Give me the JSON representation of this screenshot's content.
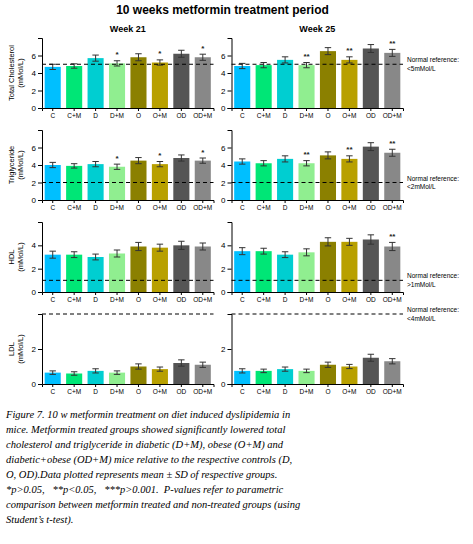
{
  "title": "10 weeks metformin treatment period",
  "caption": "Figure 7. 10 w metformin treatment on diet induced dyslipidemia in\nmice. Metformin treated groups showed significantly lowered total\ncholesterol and triglyceride in diabetic (D+M), obese (O+M) and\ndiabetic+obese (OD+M) mice relative to the respective controls (D,\nO, OD).Data plotted represents mean ± SD of respective groups.\n*p>0.05,   **p<0.05,   ***p>0.001.  P-values refer to parametric\ncomparison between metformin treated and non-treated groups (using\nStudent’s t-test).",
  "chart_data": [
    {
      "type": "bar",
      "title": "Week 21",
      "ylabel": "Total Cholesterol\n(mMol/L)",
      "categories": [
        "C",
        "C+M",
        "D",
        "D+M",
        "O",
        "O+M",
        "OD",
        "OD+M"
      ],
      "values": [
        4.7,
        4.8,
        5.7,
        5.1,
        5.8,
        5.2,
        6.2,
        5.8
      ],
      "errors": [
        0.3,
        0.25,
        0.35,
        0.3,
        0.4,
        0.3,
        0.4,
        0.35
      ],
      "colors": [
        "#00BFFF",
        "#00E676",
        "#00CED1",
        "#90EE90",
        "#8B8000",
        "#B8A000",
        "#555555",
        "#888888"
      ],
      "ylim": [
        0,
        8
      ],
      "yticks": [
        0,
        2,
        4,
        6
      ],
      "ref_line": 5.0,
      "annotations": [
        {
          "category": "D+M",
          "text": "*"
        },
        {
          "category": "O+M",
          "text": "*"
        },
        {
          "category": "OD+M",
          "text": "*"
        }
      ]
    },
    {
      "type": "bar",
      "title": "Week 25",
      "categories": [
        "C",
        "C+M",
        "D",
        "D+M",
        "O",
        "O+M",
        "OD",
        "OD+M"
      ],
      "values": [
        4.8,
        4.9,
        5.5,
        4.9,
        6.5,
        5.5,
        6.8,
        6.3
      ],
      "errors": [
        0.3,
        0.3,
        0.35,
        0.3,
        0.4,
        0.35,
        0.45,
        0.4
      ],
      "colors": [
        "#00BFFF",
        "#00E676",
        "#00CED1",
        "#90EE90",
        "#8B8000",
        "#B8A000",
        "#555555",
        "#888888"
      ],
      "ylim": [
        0,
        8
      ],
      "yticks": [
        0,
        2,
        4,
        6
      ],
      "ref_line": 5.0,
      "ref_text": "Normal reference:\n<5mMol/L",
      "annotations": [
        {
          "category": "D+M",
          "text": "**"
        },
        {
          "category": "O+M",
          "text": "**"
        },
        {
          "category": "OD+M",
          "text": "**"
        }
      ]
    },
    {
      "type": "bar",
      "ylabel": "Triglyceride\n(mMol/L)",
      "categories": [
        "C",
        "C+M",
        "D",
        "D+M",
        "O",
        "O+M",
        "OD",
        "OD+M"
      ],
      "values": [
        4.0,
        3.9,
        4.1,
        3.8,
        4.5,
        4.1,
        4.8,
        4.5
      ],
      "errors": [
        0.3,
        0.25,
        0.3,
        0.3,
        0.35,
        0.3,
        0.35,
        0.3
      ],
      "colors": [
        "#00BFFF",
        "#00E676",
        "#00CED1",
        "#90EE90",
        "#8B8000",
        "#B8A000",
        "#555555",
        "#888888"
      ],
      "ylim": [
        0,
        8
      ],
      "yticks": [
        0,
        2,
        4,
        6
      ],
      "ref_line": 2.0,
      "annotations": [
        {
          "category": "D+M",
          "text": "*"
        },
        {
          "category": "O+M",
          "text": "*"
        },
        {
          "category": "OD+M",
          "text": "*"
        }
      ]
    },
    {
      "type": "bar",
      "categories": [
        "C",
        "C+M",
        "D",
        "D+M",
        "O",
        "O+M",
        "OD",
        "OD+M"
      ],
      "values": [
        4.4,
        4.2,
        4.7,
        4.2,
        5.1,
        4.7,
        6.1,
        5.4
      ],
      "errors": [
        0.3,
        0.3,
        0.35,
        0.3,
        0.4,
        0.35,
        0.45,
        0.4
      ],
      "colors": [
        "#00BFFF",
        "#00E676",
        "#00CED1",
        "#90EE90",
        "#8B8000",
        "#B8A000",
        "#555555",
        "#888888"
      ],
      "ylim": [
        0,
        8
      ],
      "yticks": [
        0,
        2,
        4,
        6
      ],
      "ref_line": 2.0,
      "ref_text": "Normal reference:\n<2mMol/L",
      "annotations": [
        {
          "category": "D+M",
          "text": "**"
        },
        {
          "category": "O+M",
          "text": "**"
        },
        {
          "category": "OD+M",
          "text": "**"
        }
      ]
    },
    {
      "type": "bar",
      "ylabel": "HDL\n(mMol/L)",
      "categories": [
        "C",
        "C+M",
        "D",
        "D+M",
        "O",
        "O+M",
        "OD",
        "OD+M"
      ],
      "values": [
        3.2,
        3.2,
        3.0,
        3.3,
        3.9,
        3.8,
        4.0,
        3.9
      ],
      "errors": [
        0.3,
        0.25,
        0.25,
        0.3,
        0.35,
        0.3,
        0.35,
        0.3
      ],
      "colors": [
        "#00BFFF",
        "#00E676",
        "#00CED1",
        "#90EE90",
        "#8B8000",
        "#B8A000",
        "#555555",
        "#888888"
      ],
      "ylim": [
        0,
        6
      ],
      "yticks": [
        0,
        2,
        4
      ],
      "ref_line": 1.0
    },
    {
      "type": "bar",
      "categories": [
        "C",
        "C+M",
        "D",
        "D+M",
        "O",
        "O+M",
        "OD",
        "OD+M"
      ],
      "values": [
        3.5,
        3.5,
        3.2,
        3.4,
        4.3,
        4.3,
        4.5,
        3.9
      ],
      "errors": [
        0.3,
        0.25,
        0.25,
        0.3,
        0.35,
        0.3,
        0.4,
        0.35
      ],
      "colors": [
        "#00BFFF",
        "#00E676",
        "#00CED1",
        "#90EE90",
        "#8B8000",
        "#B8A000",
        "#555555",
        "#888888"
      ],
      "ylim": [
        0,
        6
      ],
      "yticks": [
        0,
        2,
        4
      ],
      "ref_line": 1.0,
      "ref_text": "Normal reference:\n>1mMol/L",
      "annotations": [
        {
          "category": "OD+M",
          "text": "**"
        }
      ]
    },
    {
      "type": "bar",
      "ylabel": "LDL\n(mMol/L)",
      "categories": [
        "C",
        "C+M",
        "D",
        "D+M",
        "O",
        "O+M",
        "OD",
        "OD+M"
      ],
      "values": [
        0.65,
        0.6,
        0.75,
        0.65,
        1.0,
        0.85,
        1.2,
        1.1
      ],
      "errors": [
        0.1,
        0.1,
        0.12,
        0.1,
        0.15,
        0.12,
        0.18,
        0.15
      ],
      "colors": [
        "#00BFFF",
        "#00E676",
        "#00CED1",
        "#90EE90",
        "#8B8000",
        "#B8A000",
        "#555555",
        "#888888"
      ],
      "ylim": [
        0,
        4
      ],
      "yticks": [
        0,
        2
      ],
      "ref_line": 4.0
    },
    {
      "type": "bar",
      "categories": [
        "C",
        "C+M",
        "D",
        "D+M",
        "O",
        "O+M",
        "OD",
        "OD+M"
      ],
      "values": [
        0.75,
        0.75,
        0.85,
        0.75,
        1.1,
        1.0,
        1.5,
        1.3
      ],
      "errors": [
        0.12,
        0.1,
        0.12,
        0.1,
        0.15,
        0.12,
        0.2,
        0.15
      ],
      "colors": [
        "#00BFFF",
        "#00E676",
        "#00CED1",
        "#90EE90",
        "#8B8000",
        "#B8A000",
        "#555555",
        "#888888"
      ],
      "ylim": [
        0,
        4
      ],
      "yticks": [
        0,
        2
      ],
      "ref_line": 4.0,
      "ref_text": "Normal reference:\n<4mMol/L"
    }
  ]
}
